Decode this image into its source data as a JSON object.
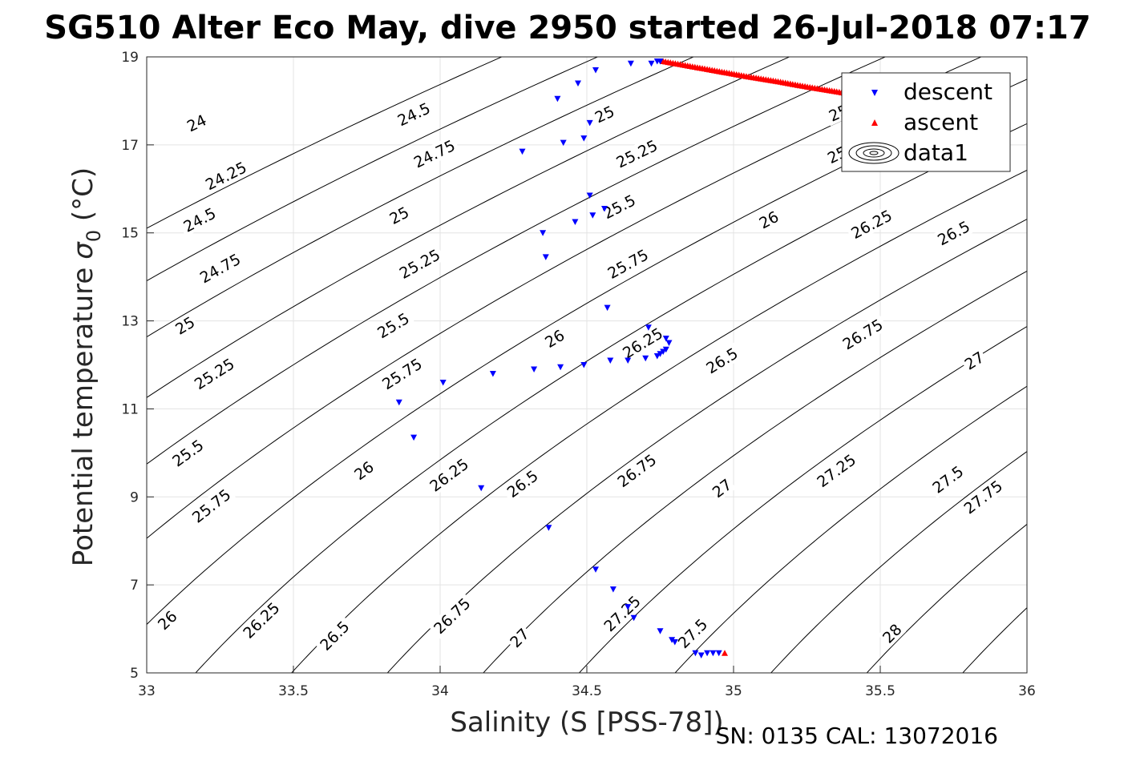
{
  "chart_data": {
    "type": "scatter",
    "title": "SG510 Alter Eco May, dive 2950 started 26-Jul-2018 07:17",
    "xlabel": "Salinity (S [PSS-78])",
    "ylabel_main": "Potential temperature",
    "ylabel_sym": "σ",
    "ylabel_sub": "0",
    "ylabel_unit": " (°C)",
    "footer": "SN: 0135  CAL: 13072016",
    "xlim": [
      33,
      36
    ],
    "ylim": [
      5,
      19
    ],
    "x_ticks": [
      "33",
      "33.5",
      "34",
      "34.5",
      "35",
      "35.5",
      "36"
    ],
    "y_ticks": [
      "5",
      "7",
      "9",
      "11",
      "13",
      "15",
      "17",
      "19"
    ],
    "grid": true,
    "legend_position": "top-right",
    "legend": [
      {
        "label": "descent",
        "marker": "triangle-down",
        "color": "#0000ff"
      },
      {
        "label": "ascent",
        "marker": "triangle-up",
        "color": "#ff0000"
      },
      {
        "label": "data1",
        "marker": "contour",
        "color": "#000000"
      }
    ],
    "contour_levels": [
      24,
      24.25,
      24.5,
      24.75,
      25,
      25.25,
      25.5,
      25.75,
      26,
      26.25,
      26.5,
      26.75,
      27,
      27.25,
      27.5,
      27.75,
      28
    ],
    "contour_labels": [
      {
        "text": "24",
        "x": 33.17,
        "y": 17.5
      },
      {
        "text": "24.25",
        "x": 33.27,
        "y": 16.3
      },
      {
        "text": "24.5",
        "x": 33.18,
        "y": 15.3
      },
      {
        "text": "24.75",
        "x": 33.25,
        "y": 14.2
      },
      {
        "text": "25",
        "x": 33.13,
        "y": 12.9
      },
      {
        "text": "25.25",
        "x": 33.23,
        "y": 11.8
      },
      {
        "text": "25.5",
        "x": 33.14,
        "y": 10.0
      },
      {
        "text": "25.75",
        "x": 33.22,
        "y": 8.8
      },
      {
        "text": "26",
        "x": 33.07,
        "y": 6.2
      },
      {
        "text": "26.25",
        "x": 33.39,
        "y": 6.2
      },
      {
        "text": "26.5",
        "x": 33.64,
        "y": 5.85
      },
      {
        "text": "26.75",
        "x": 34.04,
        "y": 6.3
      },
      {
        "text": "27",
        "x": 34.27,
        "y": 5.8
      },
      {
        "text": "27.25",
        "x": 34.62,
        "y": 6.35
      },
      {
        "text": "27.5",
        "x": 34.86,
        "y": 5.9
      },
      {
        "text": "28",
        "x": 35.54,
        "y": 5.9
      },
      {
        "text": "24.5",
        "x": 33.91,
        "y": 17.7
      },
      {
        "text": "24.75",
        "x": 33.98,
        "y": 16.8
      },
      {
        "text": "25",
        "x": 34.56,
        "y": 17.7
      },
      {
        "text": "25.25",
        "x": 34.67,
        "y": 16.8
      },
      {
        "text": "25",
        "x": 33.86,
        "y": 15.4
      },
      {
        "text": "25.25",
        "x": 33.93,
        "y": 14.3
      },
      {
        "text": "25.5",
        "x": 34.61,
        "y": 15.6
      },
      {
        "text": "25.75",
        "x": 34.64,
        "y": 14.3
      },
      {
        "text": "25.5",
        "x": 33.84,
        "y": 12.9
      },
      {
        "text": "25.75",
        "x": 33.87,
        "y": 11.8
      },
      {
        "text": "26",
        "x": 34.39,
        "y": 12.6
      },
      {
        "text": "26.25",
        "x": 34.69,
        "y": 12.5
      },
      {
        "text": "26",
        "x": 33.74,
        "y": 9.6
      },
      {
        "text": "26.25",
        "x": 34.03,
        "y": 9.5
      },
      {
        "text": "26.5",
        "x": 34.28,
        "y": 9.3
      },
      {
        "text": "26.75",
        "x": 34.67,
        "y": 9.6
      },
      {
        "text": "27",
        "x": 34.96,
        "y": 9.2
      },
      {
        "text": "26",
        "x": 35.12,
        "y": 15.3
      },
      {
        "text": "26.25",
        "x": 35.47,
        "y": 15.2
      },
      {
        "text": "26.5",
        "x": 35.75,
        "y": 15.0
      },
      {
        "text": "26.5",
        "x": 34.96,
        "y": 12.1
      },
      {
        "text": "26.75",
        "x": 35.44,
        "y": 12.7
      },
      {
        "text": "27",
        "x": 35.82,
        "y": 12.1
      },
      {
        "text": "27.25",
        "x": 35.35,
        "y": 9.6
      },
      {
        "text": "27.5",
        "x": 35.73,
        "y": 9.4
      },
      {
        "text": "27.75",
        "x": 35.85,
        "y": 9.0
      },
      {
        "text": "25.5",
        "x": 35.38,
        "y": 17.8
      },
      {
        "text": "25.75",
        "x": 35.39,
        "y": 16.9
      }
    ],
    "descent": {
      "x": [
        34.75,
        34.74,
        34.72,
        34.65,
        34.53,
        34.47,
        34.4,
        34.51,
        34.49,
        34.42,
        34.28,
        34.51,
        34.56,
        34.52,
        34.46,
        34.35,
        34.36,
        34.57,
        34.71,
        34.77,
        34.78,
        34.77,
        34.76,
        34.75,
        34.74,
        34.7,
        34.58,
        34.64,
        34.49,
        34.41,
        34.32,
        34.18,
        34.01,
        33.86,
        33.91,
        34.14,
        34.37,
        34.53,
        34.59,
        34.64,
        34.66,
        34.75,
        34.79,
        34.8,
        34.87,
        34.89,
        34.91,
        34.93,
        34.95
      ],
      "y": [
        18.9,
        18.9,
        18.85,
        18.85,
        18.7,
        18.4,
        18.05,
        17.5,
        17.15,
        17.05,
        16.85,
        15.85,
        15.55,
        15.4,
        15.25,
        15.0,
        14.45,
        13.3,
        12.85,
        12.6,
        12.5,
        12.35,
        12.3,
        12.25,
        12.2,
        12.15,
        12.1,
        12.1,
        12.0,
        11.95,
        11.9,
        11.8,
        11.6,
        11.15,
        10.35,
        9.2,
        8.3,
        7.35,
        6.9,
        6.5,
        6.25,
        5.95,
        5.75,
        5.7,
        5.45,
        5.4,
        5.45,
        5.45,
        5.45
      ]
    },
    "ascent": {
      "x": [
        34.76,
        34.86,
        34.96,
        35.06,
        35.16,
        35.26,
        35.36,
        35.46,
        34.97
      ],
      "y": [
        18.9,
        18.78,
        18.66,
        18.54,
        18.43,
        18.31,
        18.2,
        18.08,
        5.45
      ]
    }
  }
}
